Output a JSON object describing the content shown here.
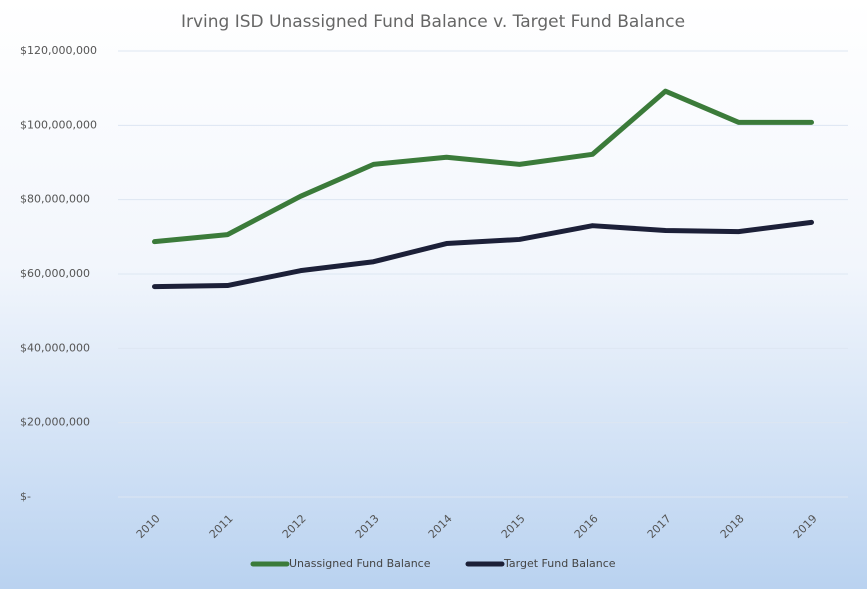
{
  "chart_data": {
    "type": "line",
    "title": "Irving ISD Unassigned Fund Balance v. Target Fund Balance",
    "categories": [
      "2010",
      "2011",
      "2012",
      "2013",
      "2014",
      "2015",
      "2016",
      "2017",
      "2018",
      "2019"
    ],
    "series": [
      {
        "name": "Unassigned Fund Balance",
        "color": "#3b7b3a",
        "values": [
          68.7,
          70.6,
          80.9,
          89.5,
          91.4,
          89.5,
          92.2,
          109.2,
          100.8,
          100.8
        ]
      },
      {
        "name": "Target Fund Balance",
        "color": "#1c2038",
        "values": [
          56.6,
          56.9,
          60.9,
          63.3,
          68.2,
          69.3,
          73.0,
          71.7,
          71.4,
          73.9
        ]
      }
    ],
    "ylim": [
      0,
      120
    ],
    "yticks": [
      {
        "value": 0,
        "label": "$-"
      },
      {
        "value": 20,
        "label": "$20,000,000"
      },
      {
        "value": 40,
        "label": "$40,000,000"
      },
      {
        "value": 60,
        "label": "$60,000,000"
      },
      {
        "value": 80,
        "label": "$80,000,000"
      },
      {
        "value": 100,
        "label": "$100,000,000"
      },
      {
        "value": 120,
        "label": "$120,000,000"
      }
    ],
    "grid": true,
    "legend": "bottom"
  }
}
